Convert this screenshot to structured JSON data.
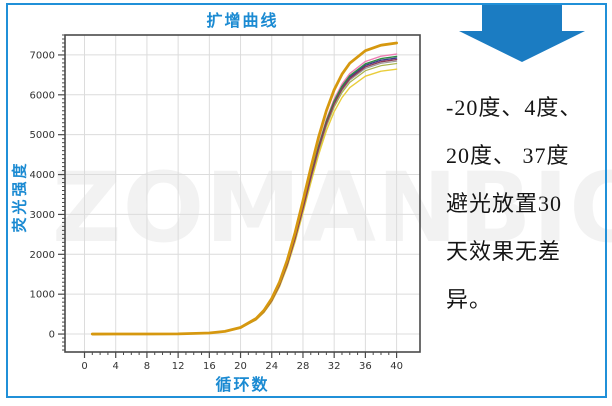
{
  "colors": {
    "frame_border": "#2090d8",
    "accent_blue": "#1a8ad2",
    "arrow_blue": "#1b7cc2",
    "plot_border": "#4a4a4a",
    "grid": "#dcdcdc",
    "tick_label": "#333333",
    "note_text": "#151515",
    "watermark": "rgba(0,0,0,0.05)"
  },
  "watermark": {
    "text": "ZOMANBIO"
  },
  "note": {
    "lines": [
      "-20度、4度、",
      "20度、 37度",
      "避光放置30",
      "天效果无差",
      "异。"
    ]
  },
  "chart_data": {
    "type": "line",
    "title": "扩增曲线",
    "xlabel": "循环数",
    "ylabel": "荧光强度",
    "xlim": [
      -2.5,
      43
    ],
    "ylim": [
      -450,
      7500
    ],
    "x_ticks": [
      0,
      4,
      8,
      12,
      16,
      20,
      24,
      28,
      32,
      36,
      40
    ],
    "y_ticks": [
      0,
      1000,
      2000,
      3000,
      4000,
      5000,
      6000,
      7000
    ],
    "x_minor_step": 1,
    "y_minor_step": 100,
    "grid": true,
    "legend": "none",
    "x": [
      1,
      4,
      8,
      12,
      16,
      18,
      20,
      22,
      23,
      24,
      25,
      26,
      27,
      28,
      29,
      30,
      31,
      32,
      33,
      34,
      36,
      38,
      40
    ],
    "series": [
      {
        "name": "curve-yellow",
        "color": "#e9cd3b",
        "width": 1.4,
        "values": [
          0,
          0,
          1,
          4,
          25,
          61,
          149,
          355,
          540,
          811,
          1189,
          1695,
          2321,
          3040,
          3788,
          4493,
          5098,
          5577,
          5931,
          6182,
          6468,
          6593,
          6644
        ]
      },
      {
        "name": "curve-olive",
        "color": "#a9b44d",
        "width": 1.2,
        "values": [
          0,
          0,
          1,
          4,
          25,
          63,
          152,
          363,
          552,
          828,
          1214,
          1730,
          2370,
          3104,
          3868,
          4587,
          5204,
          5693,
          6055,
          6312,
          6604,
          6731,
          6783
        ]
      },
      {
        "name": "curve-gray",
        "color": "#9a9a9a",
        "width": 1.2,
        "values": [
          0,
          0,
          1,
          4,
          25,
          63,
          153,
          366,
          557,
          835,
          1225,
          1745,
          2391,
          3131,
          3902,
          4628,
          5250,
          5743,
          6109,
          6367,
          6662,
          6790,
          6843
        ]
      },
      {
        "name": "curve-navy",
        "color": "#3f3a8e",
        "width": 1.4,
        "values": [
          0,
          0,
          1,
          4,
          26,
          64,
          155,
          370,
          563,
          845,
          1239,
          1766,
          2419,
          3168,
          3947,
          4681,
          5311,
          5810,
          6180,
          6441,
          6739,
          6869,
          6922
        ]
      },
      {
        "name": "curve-pink",
        "color": "#ee7fb5",
        "width": 1.4,
        "values": [
          0,
          0,
          1,
          4,
          26,
          65,
          157,
          376,
          571,
          857,
          1257,
          1791,
          2453,
          3213,
          4004,
          4749,
          5388,
          5894,
          6269,
          6534,
          6836,
          6968,
          7022
        ]
      },
      {
        "name": "curve-green",
        "color": "#2f8b44",
        "width": 1.4,
        "values": [
          0,
          0,
          1,
          4,
          26,
          64,
          156,
          372,
          566,
          850,
          1246,
          1776,
          2433,
          3186,
          3970,
          4708,
          5342,
          5844,
          6215,
          6479,
          6778,
          6908,
          6962
        ]
      },
      {
        "name": "curve-maroon",
        "color": "#8e3a56",
        "width": 1.4,
        "values": [
          0,
          0,
          1,
          4,
          26,
          64,
          154,
          368,
          560,
          840,
          1232,
          1756,
          2405,
          3149,
          3924,
          4654,
          5281,
          5777,
          6144,
          6404,
          6701,
          6829,
          6883
        ]
      },
      {
        "name": "curve-amber",
        "color": "#d6980f",
        "width": 2.8,
        "values": [
          0,
          1,
          1,
          4,
          27,
          68,
          164,
          390,
          594,
          891,
          1307,
          1862,
          2551,
          3340,
          4162,
          4937,
          5601,
          6127,
          6517,
          6793,
          7107,
          7244,
          7300
        ]
      }
    ]
  }
}
